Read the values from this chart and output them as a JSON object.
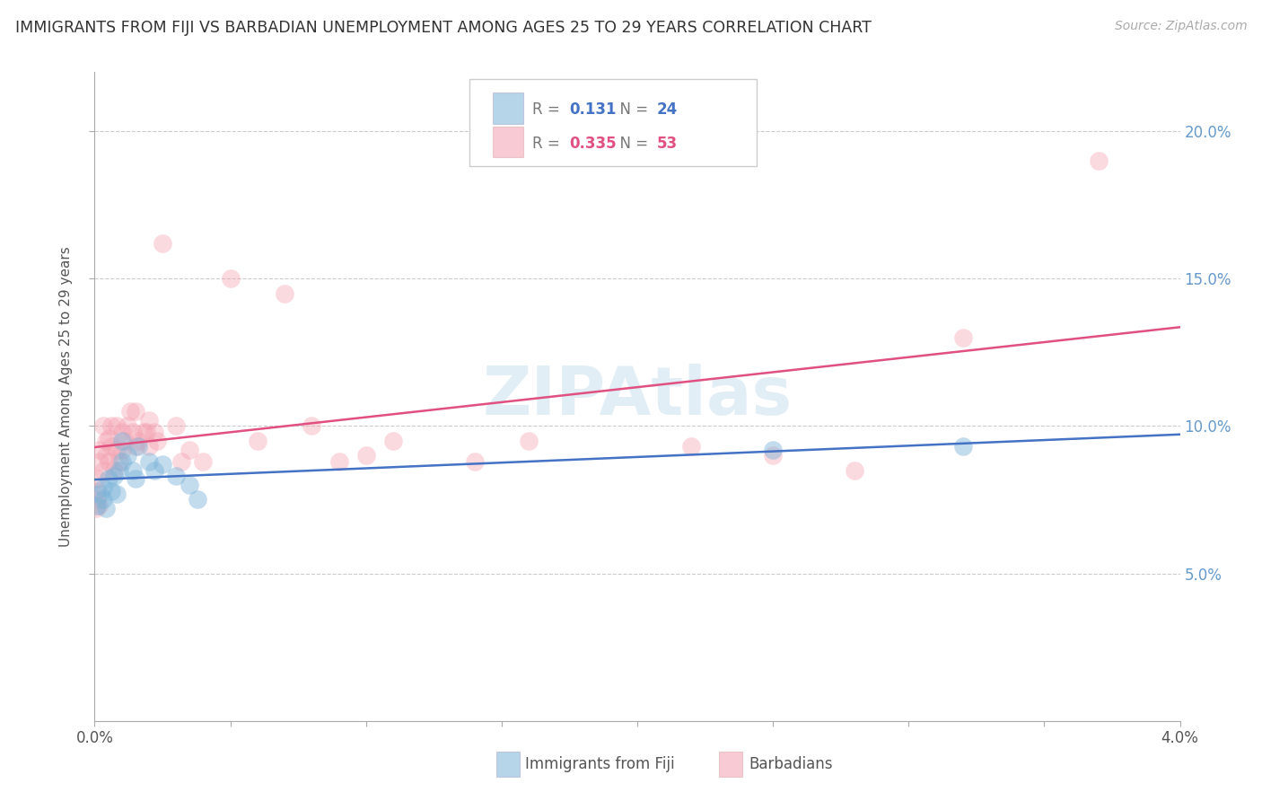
{
  "title": "IMMIGRANTS FROM FIJI VS BARBADIAN UNEMPLOYMENT AMONG AGES 25 TO 29 YEARS CORRELATION CHART",
  "source": "Source: ZipAtlas.com",
  "ylabel": "Unemployment Among Ages 25 to 29 years",
  "legend_fiji_R": "0.131",
  "legend_fiji_N": "24",
  "legend_barb_R": "0.335",
  "legend_barb_N": "53",
  "color_fiji": "#7ab3d8",
  "color_barb": "#f4a0b0",
  "color_fiji_line": "#4472c4",
  "color_barb_line": "#e05080",
  "watermark": "ZIPAtlas",
  "fiji_x": [
    0.0001,
    0.0002,
    0.0003,
    0.0003,
    0.0004,
    0.0005,
    0.0006,
    0.0007,
    0.0008,
    0.0009,
    0.001,
    0.001,
    0.0012,
    0.0014,
    0.0015,
    0.0016,
    0.002,
    0.0022,
    0.0025,
    0.003,
    0.0035,
    0.0038,
    0.025,
    0.032
  ],
  "fiji_y": [
    0.073,
    0.077,
    0.075,
    0.079,
    0.072,
    0.082,
    0.078,
    0.083,
    0.077,
    0.085,
    0.088,
    0.095,
    0.09,
    0.085,
    0.082,
    0.093,
    0.088,
    0.085,
    0.087,
    0.083,
    0.08,
    0.075,
    0.092,
    0.093
  ],
  "barb_x": [
    5e-05,
    8e-05,
    0.0001,
    0.0001,
    0.00015,
    0.0002,
    0.0002,
    0.0003,
    0.0003,
    0.0004,
    0.0004,
    0.0005,
    0.0005,
    0.0006,
    0.0006,
    0.0007,
    0.0008,
    0.0008,
    0.0009,
    0.001,
    0.001,
    0.0011,
    0.0012,
    0.0013,
    0.0014,
    0.0015,
    0.0015,
    0.0016,
    0.0018,
    0.0019,
    0.002,
    0.002,
    0.0022,
    0.0023,
    0.0025,
    0.003,
    0.0032,
    0.0035,
    0.004,
    0.005,
    0.006,
    0.007,
    0.008,
    0.009,
    0.01,
    0.011,
    0.014,
    0.016,
    0.022,
    0.025,
    0.028,
    0.032,
    0.037
  ],
  "barb_y": [
    0.072,
    0.078,
    0.075,
    0.082,
    0.073,
    0.088,
    0.092,
    0.085,
    0.1,
    0.09,
    0.095,
    0.088,
    0.096,
    0.093,
    0.1,
    0.085,
    0.092,
    0.1,
    0.088,
    0.092,
    0.098,
    0.095,
    0.1,
    0.105,
    0.098,
    0.093,
    0.105,
    0.095,
    0.098,
    0.098,
    0.093,
    0.102,
    0.098,
    0.095,
    0.162,
    0.1,
    0.088,
    0.092,
    0.088,
    0.15,
    0.095,
    0.145,
    0.1,
    0.088,
    0.09,
    0.095,
    0.088,
    0.095,
    0.093,
    0.09,
    0.085,
    0.13,
    0.19
  ],
  "xmin": 0.0,
  "xmax": 0.04,
  "ymin": 0.0,
  "ymax": 0.22,
  "ytick_positions": [
    0.05,
    0.1,
    0.15,
    0.2
  ],
  "ytick_labels": [
    "5.0%",
    "10.0%",
    "15.0%",
    "20.0%"
  ],
  "grid_color": "#cccccc",
  "spine_color": "#aaaaaa"
}
